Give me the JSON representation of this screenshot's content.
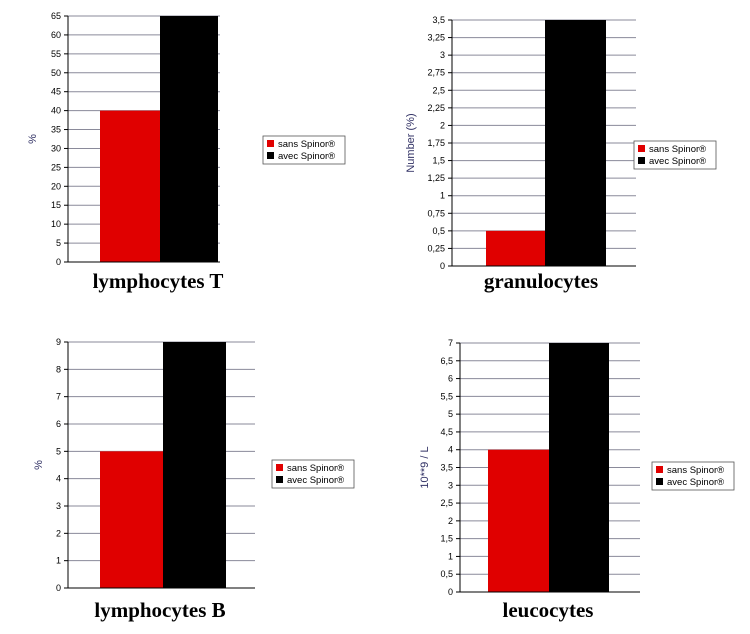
{
  "colors": {
    "sans": "#e00000",
    "avec": "#000000",
    "grid": "#8a8a9a"
  },
  "chart_data": [
    {
      "type": "bar",
      "title": "lymphocytes T",
      "ylabel": "%",
      "ylim": [
        0,
        65
      ],
      "yticks": [
        0,
        5,
        10,
        15,
        20,
        25,
        30,
        35,
        40,
        45,
        50,
        55,
        60,
        65
      ],
      "ytick_labels": [
        "0",
        "5",
        "10",
        "15",
        "20",
        "25",
        "30",
        "35",
        "40",
        "45",
        "50",
        "55",
        "60",
        "65"
      ],
      "series": [
        {
          "name": "sans Spinor®",
          "values": [
            40
          ]
        },
        {
          "name": "avec Spinor®",
          "values": [
            65
          ]
        }
      ],
      "legend_position": "right",
      "grid": true
    },
    {
      "type": "bar",
      "title": "granulocytes",
      "ylabel": "Number (%)",
      "ylim": [
        0,
        3.5
      ],
      "yticks": [
        0,
        0.25,
        0.5,
        0.75,
        1,
        1.25,
        1.5,
        1.75,
        2,
        2.25,
        2.5,
        2.75,
        3,
        3.25,
        3.5
      ],
      "ytick_labels": [
        "0",
        "0,25",
        "0,5",
        "0,75",
        "1",
        "1,25",
        "1,5",
        "1,75",
        "2",
        "2,25",
        "2,5",
        "2,75",
        "3",
        "3,25",
        "3,5"
      ],
      "series": [
        {
          "name": "sans Spinor®",
          "values": [
            0.5
          ]
        },
        {
          "name": "avec Spinor®",
          "values": [
            3.5
          ]
        }
      ],
      "legend_position": "right",
      "grid": true
    },
    {
      "type": "bar",
      "title": "lymphocytes B",
      "ylabel": "%",
      "ylim": [
        0,
        9
      ],
      "yticks": [
        0,
        1,
        2,
        3,
        4,
        5,
        6,
        7,
        8,
        9
      ],
      "ytick_labels": [
        "0",
        "1",
        "2",
        "3",
        "4",
        "5",
        "6",
        "7",
        "8",
        "9"
      ],
      "series": [
        {
          "name": "sans Spinor®",
          "values": [
            5
          ]
        },
        {
          "name": "avec Spinor®",
          "values": [
            9
          ]
        }
      ],
      "legend_position": "right",
      "grid": true
    },
    {
      "type": "bar",
      "title": "leucocytes",
      "ylabel": "10**9 / L",
      "ylim": [
        0,
        7
      ],
      "yticks": [
        0,
        0.5,
        1,
        1.5,
        2,
        2.5,
        3,
        3.5,
        4,
        4.5,
        5,
        5.5,
        6,
        6.5,
        7
      ],
      "ytick_labels": [
        "0",
        "0,5",
        "1",
        "1,5",
        "2",
        "2,5",
        "3",
        "3,5",
        "4",
        "4,5",
        "5",
        "5,5",
        "6",
        "6,5",
        "7"
      ],
      "series": [
        {
          "name": "sans Spinor®",
          "values": [
            4
          ]
        },
        {
          "name": "avec Spinor®",
          "values": [
            7
          ]
        }
      ],
      "legend_position": "right",
      "grid": true
    }
  ]
}
